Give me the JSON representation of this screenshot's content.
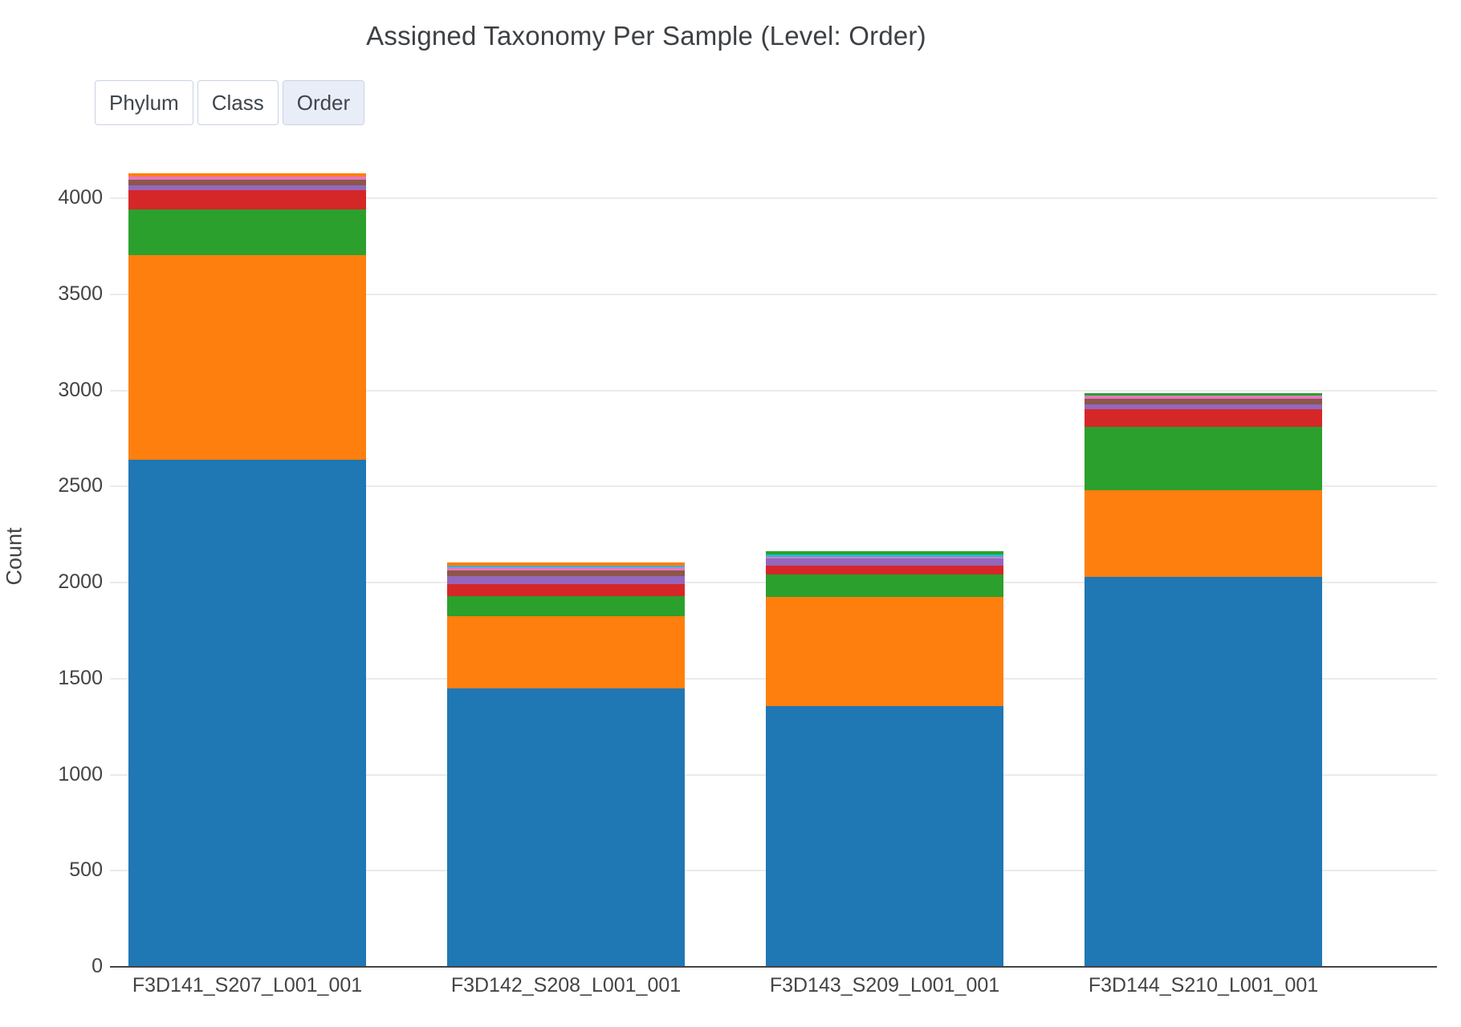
{
  "title": "Assigned Taxonomy Per Sample (Level: Order)",
  "controls": {
    "buttons": [
      {
        "label": "Phylum",
        "active": false
      },
      {
        "label": "Class",
        "active": false
      },
      {
        "label": "Order",
        "active": true
      }
    ]
  },
  "chart_data": {
    "type": "bar",
    "stacked": true,
    "title": "Assigned Taxonomy Per Sample (Level: Order)",
    "xlabel": "",
    "ylabel": "Count",
    "ylim": [
      0,
      4350
    ],
    "yticks": [
      0,
      500,
      1000,
      1500,
      2000,
      2500,
      3000,
      3500,
      4000
    ],
    "grid": true,
    "legend_position": "none",
    "palette": {
      "blue": "#1f77b4",
      "orange": "#ff7f0e",
      "green": "#2ca02c",
      "red": "#d62728",
      "purple": "#9467bd",
      "brown": "#8c564b",
      "pink": "#e377c2",
      "cyan": "#17becf"
    },
    "categories": [
      "F3D141_S207_L001_001",
      "F3D142_S208_L001_001",
      "F3D143_S209_L001_001",
      "F3D144_S210_L001_001"
    ],
    "bars": [
      {
        "label": "F3D141_S207_L001_001",
        "total": 4129,
        "segments": [
          {
            "color": "#1f77b4",
            "value": 2640
          },
          {
            "color": "#ff7f0e",
            "value": 1064
          },
          {
            "color": "#2ca02c",
            "value": 236
          },
          {
            "color": "#d62728",
            "value": 104
          },
          {
            "color": "#9467bd",
            "value": 25
          },
          {
            "color": "#8c564b",
            "value": 27
          },
          {
            "color": "#e377c2",
            "value": 17
          },
          {
            "color": "#ff7f0e",
            "value": 16
          }
        ]
      },
      {
        "label": "F3D142_S208_L001_001",
        "total": 2105,
        "segments": [
          {
            "color": "#1f77b4",
            "value": 1448
          },
          {
            "color": "#ff7f0e",
            "value": 376
          },
          {
            "color": "#2ca02c",
            "value": 104
          },
          {
            "color": "#d62728",
            "value": 63
          },
          {
            "color": "#9467bd",
            "value": 42
          },
          {
            "color": "#8c564b",
            "value": 32
          },
          {
            "color": "#e377c2",
            "value": 14
          },
          {
            "color": "#17becf",
            "value": 11
          },
          {
            "color": "#ff7f0e",
            "value": 15
          }
        ]
      },
      {
        "label": "F3D143_S209_L001_001",
        "total": 2165,
        "segments": [
          {
            "color": "#1f77b4",
            "value": 1357
          },
          {
            "color": "#ff7f0e",
            "value": 568
          },
          {
            "color": "#2ca02c",
            "value": 118
          },
          {
            "color": "#d62728",
            "value": 45
          },
          {
            "color": "#9467bd",
            "value": 39
          },
          {
            "color": "#e377c2",
            "value": 8
          },
          {
            "color": "#17becf",
            "value": 13
          },
          {
            "color": "#2ca02c",
            "value": 17
          }
        ]
      },
      {
        "label": "F3D144_S210_L001_001",
        "total": 2987,
        "segments": [
          {
            "color": "#1f77b4",
            "value": 2030
          },
          {
            "color": "#ff7f0e",
            "value": 451
          },
          {
            "color": "#2ca02c",
            "value": 330
          },
          {
            "color": "#d62728",
            "value": 92
          },
          {
            "color": "#9467bd",
            "value": 25
          },
          {
            "color": "#8c564b",
            "value": 29
          },
          {
            "color": "#e377c2",
            "value": 17
          },
          {
            "color": "#2ca02c",
            "value": 13
          }
        ]
      }
    ]
  }
}
